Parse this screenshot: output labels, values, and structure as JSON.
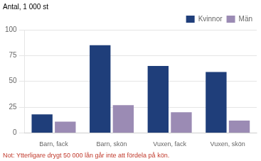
{
  "chart_data": {
    "type": "bar",
    "ylabel": "Antal, 1 000 st",
    "categories": [
      "Barn, fack",
      "Barn, skön",
      "Vuxen, fack",
      "Vuxen, skön"
    ],
    "series": [
      {
        "name": "Kvinnor",
        "color": "#1F3E7A",
        "values": [
          18,
          85,
          65,
          59
        ]
      },
      {
        "name": "Män",
        "color": "#9B8BB4",
        "values": [
          11,
          27,
          20,
          12
        ]
      }
    ],
    "ylim": [
      0,
      100
    ],
    "yticks": [
      0,
      25,
      50,
      75,
      100
    ],
    "grid": true,
    "legend": "upper right",
    "annotations": [
      {
        "text": "Not: Ytterligare drygt 50 000 lån går inte att fördela på kön.",
        "color": "#C0392B"
      }
    ]
  }
}
